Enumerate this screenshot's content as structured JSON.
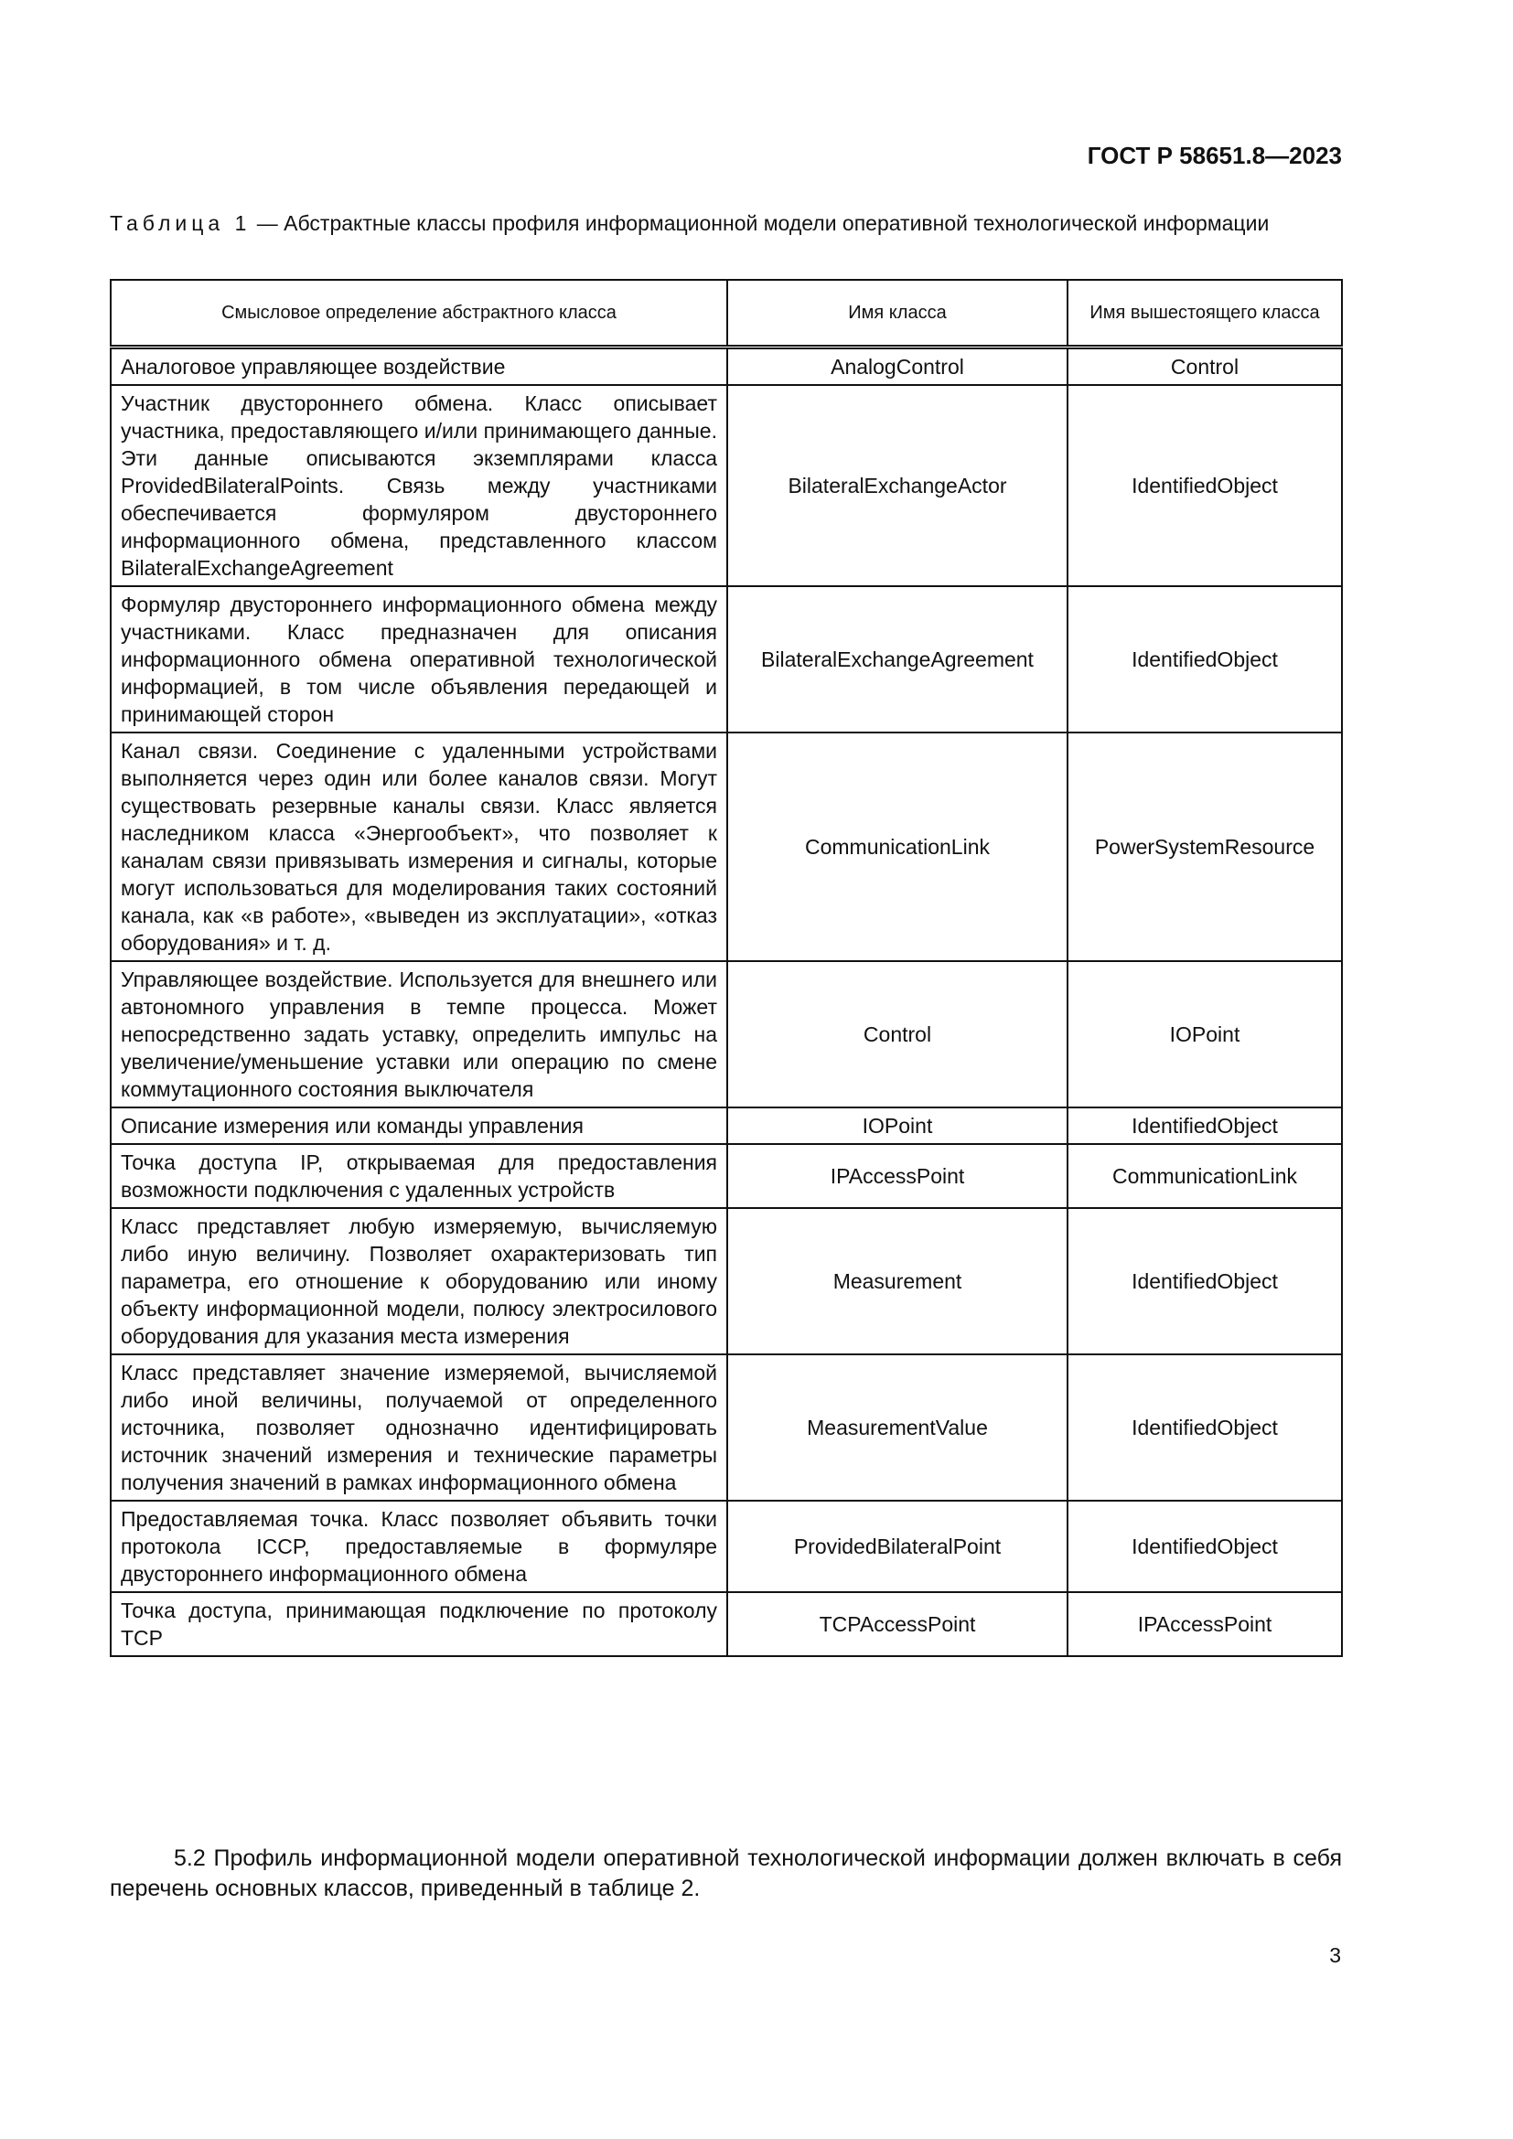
{
  "header": {
    "doc_id": "ГОСТ Р 58651.8—2023"
  },
  "caption": {
    "label": "Таблица 1",
    "text": " — Абстрактные классы профиля информационной модели оперативной технологической информации"
  },
  "table": {
    "columns": [
      "Смысловое определение абстрактного класса",
      "Имя класса",
      "Имя вышестоящего класса"
    ],
    "rows": [
      {
        "desc": "Аналоговое управляющее воздействие",
        "cls": "AnalogControl",
        "parent": "Control"
      },
      {
        "desc": "Участник двустороннего обмена. Класс описывает участника, предоставляющего и/или принимающего данные. Эти данные описываются экземплярами класса ProvidedBilateralPoints. Связь между участниками обеспечивается формуляром двустороннего информационного обмена, представленного классом BilateralExchangeAgreement",
        "cls": "BilateralExchangeActor",
        "parent": "IdentifiedObject"
      },
      {
        "desc": "Формуляр двустороннего информационного обмена между участниками. Класс предназначен для описания информационного обмена оперативной технологической информацией, в том числе объявления передающей и принимающей сторон",
        "cls": "BilateralExchangeAgreement",
        "parent": "IdentifiedObject"
      },
      {
        "desc": "Канал связи. Соединение с удаленными устройствами выполняется через один или более каналов связи. Могут существовать резервные каналы связи. Класс является наследником класса «Энергообъект», что позволяет к каналам связи привязывать измерения и сигналы, которые могут использоваться для моделирования таких состояний канала, как «в работе», «выведен из эксплуатации», «отказ оборудования» и т. д.",
        "cls": "CommunicationLink",
        "parent": "PowerSystemResource"
      },
      {
        "desc": "Управляющее воздействие. Используется для внешнего или автономного управления в темпе процесса. Может непосредственно задать уставку, определить импульс на увеличение/уменьшение уставки или операцию по смене коммутационного состояния выключателя",
        "cls": "Control",
        "parent": "IOPoint"
      },
      {
        "desc": "Описание измерения или команды управления",
        "cls": "IOPoint",
        "parent": "IdentifiedObject"
      },
      {
        "desc": "Точка доступа IP, открываемая для предоставления возможности подключения с удаленных устройств",
        "cls": "IPAccessPoint",
        "parent": "CommunicationLink"
      },
      {
        "desc": "Класс представляет любую измеряемую, вычисляемую либо иную величину. Позволяет охарактеризовать тип параметра, его отношение к оборудованию или иному объекту информационной модели, полюсу электросилового оборудования для указания места измерения",
        "cls": "Measurement",
        "parent": "IdentifiedObject"
      },
      {
        "desc": "Класс представляет значение измеряемой, вычисляемой либо иной величины, получаемой от определенного источника, позволяет однозначно идентифицировать источник значений измерения и технические параметры получения значений в рамках информационного обмена",
        "cls": "MeasurementValue",
        "parent": "IdentifiedObject"
      },
      {
        "desc": "Предоставляемая точка. Класс позволяет объявить точки протокола ICCP, предоставляемые в формуляре двустороннего информационного обмена",
        "cls": "ProvidedBilateralPoint",
        "parent": "IdentifiedObject"
      },
      {
        "desc": "Точка доступа, принимающая подключение по протоколу TCP",
        "cls": "TCPAccessPoint",
        "parent": "IPAccessPoint"
      }
    ]
  },
  "paragraph": "5.2 Профиль информационной модели оперативной технологической информации должен включать в себя перечень основных классов, приведенный в таблице 2.",
  "page_number": "3"
}
